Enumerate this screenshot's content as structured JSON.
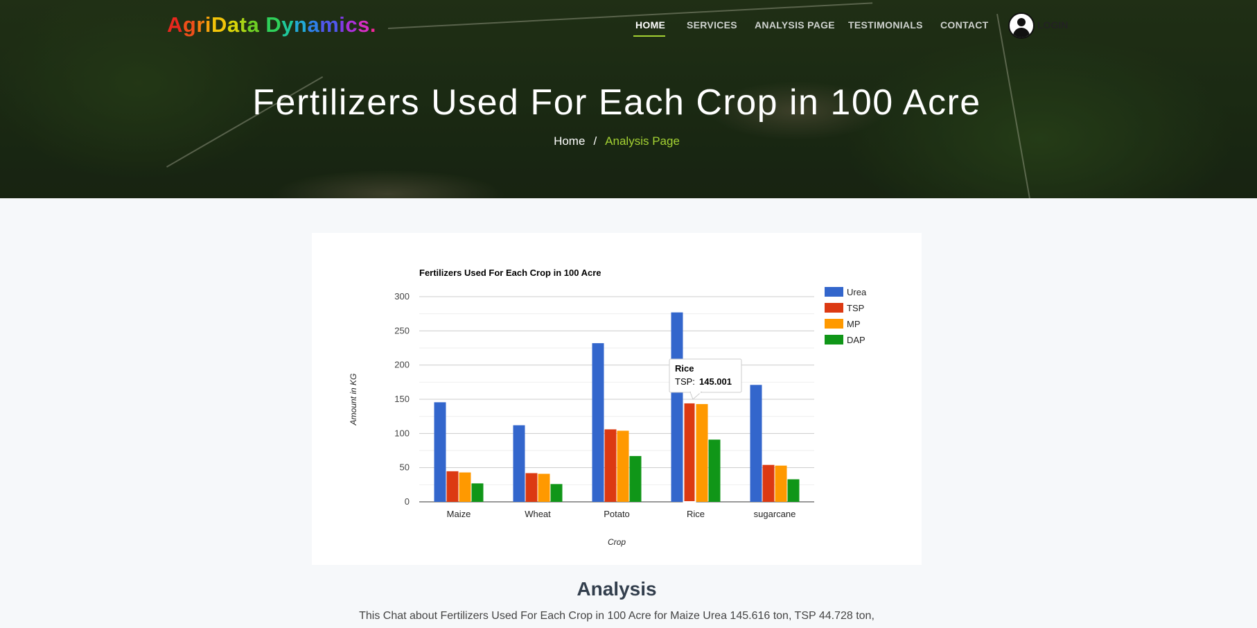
{
  "logo": {
    "letters": [
      {
        "ch": "A",
        "color": "#e8281e"
      },
      {
        "ch": "g",
        "color": "#ef4f1a"
      },
      {
        "ch": "r",
        "color": "#f57b12"
      },
      {
        "ch": "i",
        "color": "#f7a10c"
      },
      {
        "ch": "D",
        "color": "#f2c40a"
      },
      {
        "ch": "a",
        "color": "#d8d40a"
      },
      {
        "ch": "t",
        "color": "#a8d416"
      },
      {
        "ch": "a",
        "color": "#6fcf24"
      },
      {
        "ch": " ",
        "color": "#ffffff"
      },
      {
        "ch": "D",
        "color": "#2fd05a"
      },
      {
        "ch": "y",
        "color": "#1fc79a"
      },
      {
        "ch": "n",
        "color": "#22a9d6"
      },
      {
        "ch": "a",
        "color": "#2f7fe8"
      },
      {
        "ch": "m",
        "color": "#5057ea"
      },
      {
        "ch": "i",
        "color": "#7e3be6"
      },
      {
        "ch": "c",
        "color": "#a930d8"
      },
      {
        "ch": "s",
        "color": "#d52ec4"
      },
      {
        "ch": ".",
        "color": "#f0269a"
      }
    ]
  },
  "nav": {
    "items": [
      {
        "label": "HOME",
        "active": true
      },
      {
        "label": "SERVICES",
        "active": false
      },
      {
        "label": "ANALYSIS PAGE",
        "active": false
      },
      {
        "label": "TESTIMONIALS",
        "active": false
      },
      {
        "label": "CONTACT",
        "active": false
      }
    ],
    "login_label": "LOGIN",
    "login_icon": "user-circle-icon"
  },
  "hero": {
    "title": "Fertilizers Used For Each Crop in 100 Acre",
    "breadcrumb_home": "Home",
    "breadcrumb_sep": "/",
    "breadcrumb_current": "Analysis Page"
  },
  "chart_data": {
    "type": "bar",
    "title": "Fertilizers Used For Each Crop in 100 Acre",
    "xlabel": "Crop",
    "ylabel": "Amount in KG",
    "ylim": [
      0,
      300
    ],
    "yticks": [
      "0",
      "50",
      "100",
      "150",
      "200",
      "250",
      "300"
    ],
    "grid": true,
    "legend_position": "right",
    "categories": [
      "Maize",
      "Wheat",
      "Potato",
      "Rice",
      "sugarcane"
    ],
    "series": [
      {
        "name": "Urea",
        "color": "#3366cc",
        "values": [
          145.616,
          112,
          232,
          277,
          171
        ]
      },
      {
        "name": "TSP",
        "color": "#dc3912",
        "values": [
          44.728,
          42,
          106,
          145.001,
          54
        ]
      },
      {
        "name": "MP",
        "color": "#ff9900",
        "values": [
          43,
          41,
          104,
          143,
          53
        ]
      },
      {
        "name": "DAP",
        "color": "#109618",
        "values": [
          27,
          26,
          67,
          91,
          33
        ]
      }
    ],
    "tooltip": {
      "category": "Rice",
      "series_label": "TSP:",
      "value": "145.001"
    }
  },
  "analysis": {
    "title": "Analysis",
    "text": "This Chat about Fertilizers Used For Each Crop in 100 Acre for Maize Urea 145.616 ton, TSP 44.728 ton,"
  }
}
